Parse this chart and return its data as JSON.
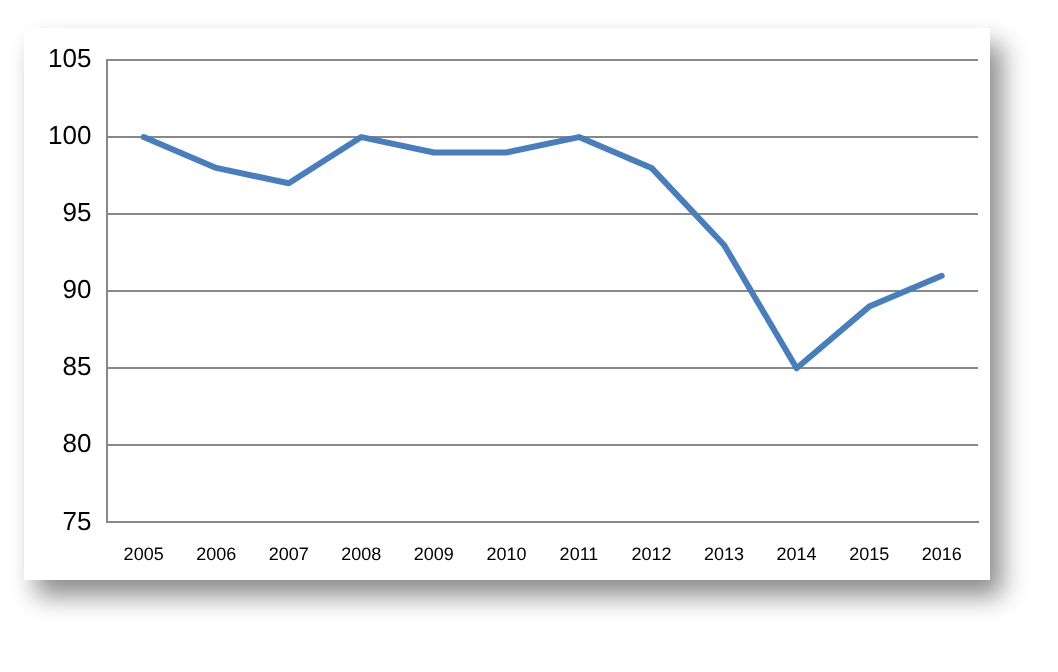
{
  "chart_data": {
    "type": "line",
    "categories": [
      "2005",
      "2006",
      "2007",
      "2008",
      "2009",
      "2010",
      "2011",
      "2012",
      "2013",
      "2014",
      "2015",
      "2016"
    ],
    "series": [
      {
        "color": "#4a7ebb",
        "values": [
          100,
          98,
          97,
          100,
          99,
          99,
          100,
          98,
          93,
          85,
          89,
          91
        ]
      }
    ],
    "ylim": [
      75,
      105
    ],
    "yticks": [
      75,
      80,
      85,
      90,
      95,
      100,
      105
    ],
    "grid": "y",
    "legend": false,
    "marker": "none",
    "line_style": "solid"
  }
}
